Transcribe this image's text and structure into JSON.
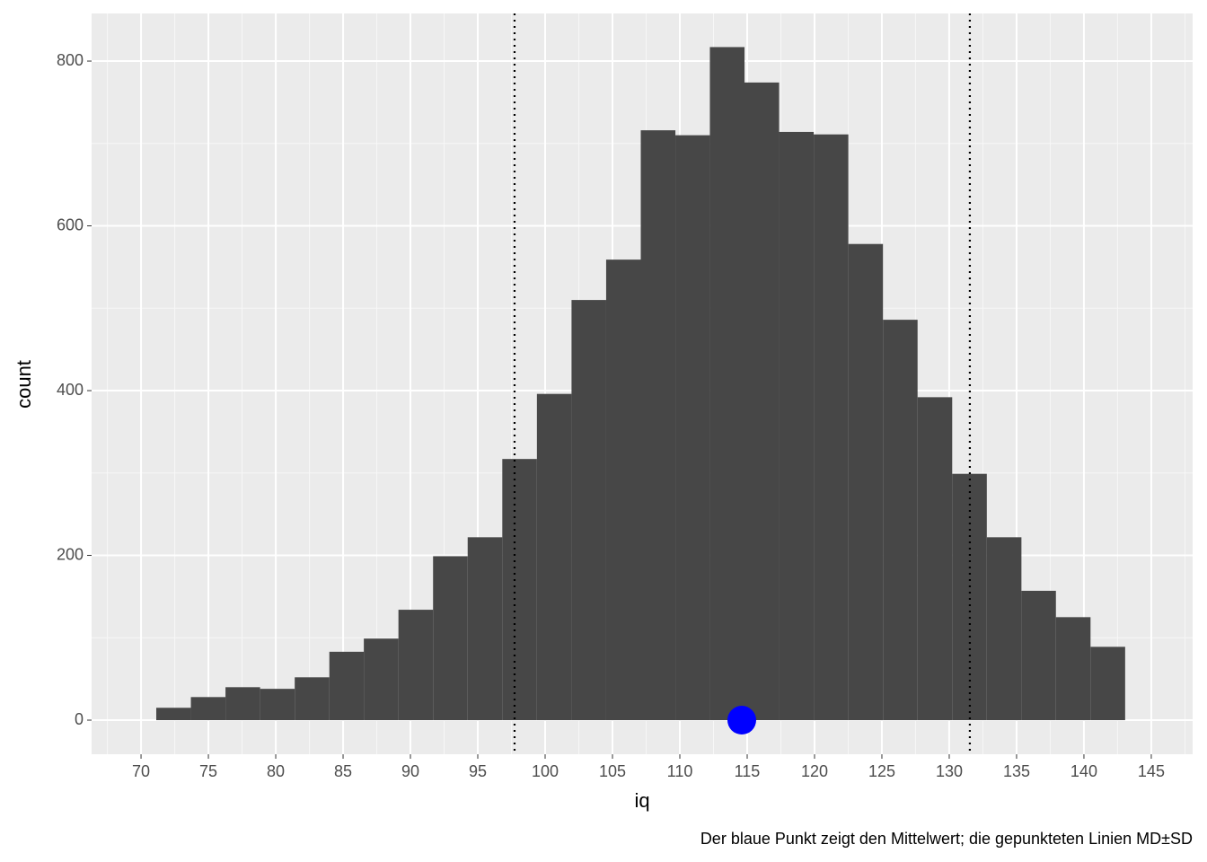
{
  "chart_data": {
    "type": "histogram",
    "x_label": "iq",
    "y_label": "count",
    "caption": "Der blaue Punkt zeigt den Mittelwert; die gepunkteten Linien MD±SD",
    "bins": [
      71.13,
      73.7,
      76.27,
      78.84,
      81.41,
      83.98,
      86.54,
      89.11,
      91.68,
      94.25,
      96.82,
      99.39,
      101.96,
      104.53,
      107.1,
      109.67,
      112.23,
      114.8,
      117.37,
      119.94,
      122.51,
      125.08,
      127.65,
      130.22,
      132.79,
      135.36,
      137.92,
      140.49,
      143.06
    ],
    "values": [
      15,
      28,
      40,
      38,
      52,
      83,
      99,
      134,
      199,
      222,
      317,
      396,
      510,
      559,
      716,
      710,
      817,
      774,
      714,
      711,
      578,
      486,
      392,
      299,
      222,
      157,
      125,
      89
    ],
    "color": "#474747",
    "xlim": [
      66.33,
      148.07
    ],
    "ylim": [
      -41.4,
      857.8
    ],
    "xticks": [
      70,
      75,
      80,
      85,
      90,
      95,
      100,
      105,
      110,
      115,
      120,
      125,
      130,
      135,
      140,
      145
    ],
    "yticks": [
      0,
      200,
      400,
      600,
      800
    ],
    "grid": true,
    "minor_grid": true,
    "vlines": [
      97.73,
      131.53
    ],
    "vline_color": "#000000",
    "mean_point": {
      "x": 114.6,
      "y": 0,
      "color": "#0000ff"
    }
  }
}
